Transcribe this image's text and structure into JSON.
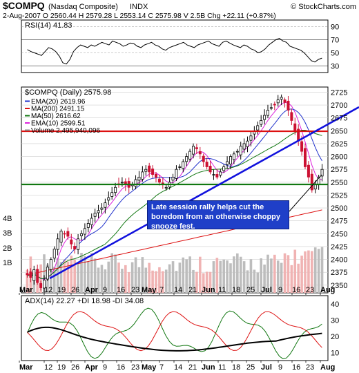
{
  "header": {
    "symbol": "$COMPQ",
    "name": "(Nasdaq Composite)",
    "exchange": "INDX",
    "source": "© StockCharts.com",
    "quote_line": "2-Aug-2007   O 2560.44  H 2579.28  L 2553.14  C 2575.98  V 2.5B  Chg +22.11 (+0.87%)"
  },
  "rsi_panel": {
    "label": "RSI(14) 41.83",
    "ticks": [
      "90",
      "70",
      "50",
      "30"
    ],
    "values": [
      55,
      52,
      50,
      48,
      46,
      52,
      58,
      56,
      52,
      45,
      35,
      33,
      40,
      52,
      58,
      62,
      60,
      58,
      62,
      60,
      63,
      66,
      64,
      62,
      68,
      66,
      64,
      60,
      62,
      65,
      64,
      60,
      58,
      62,
      64,
      66,
      62,
      60,
      56,
      54,
      58,
      60,
      62,
      64,
      66,
      62,
      60,
      58,
      62,
      64,
      66,
      68,
      64,
      62,
      60,
      66,
      68,
      65,
      62,
      60,
      58,
      62,
      60,
      56,
      54,
      50,
      52,
      56,
      62,
      66,
      70,
      72,
      68,
      66,
      60,
      58,
      56,
      54,
      50,
      44,
      38,
      36,
      40,
      42
    ]
  },
  "price_panel": {
    "title": "$COMPQ (Daily) 2575.98",
    "legend": [
      {
        "text": "EMA(20) 2619.96",
        "color": "#2233cc"
      },
      {
        "text": "MA(200) 2491.15",
        "color": "#dd1111"
      },
      {
        "text": "MA(50) 2616.62",
        "color": "#117711"
      },
      {
        "text": "EMA(10) 2599.51",
        "color": "#dd22dd"
      },
      {
        "text": "Volume 2,495,940,096",
        "color": "#888888"
      }
    ],
    "y_ticks": [
      "2725",
      "2700",
      "2675",
      "2650",
      "2625",
      "2600",
      "2575",
      "2550",
      "2525",
      "2500",
      "2475",
      "2450",
      "2425",
      "2400",
      "2375",
      "2350"
    ],
    "vol_ticks": [
      "4B",
      "3B",
      "2B",
      "1B"
    ],
    "annotation": "Late session rally helps cut the boredom from an otherwise choppy snooze fest."
  },
  "adx_panel": {
    "label": "ADX(14) 22.27  +DI 18.98  -DI 34.08",
    "ticks": [
      "40",
      "30",
      "20",
      "10"
    ]
  },
  "x_axis": {
    "labels": [
      "Mar",
      "12",
      "19",
      "26",
      "Apr",
      "9",
      "16",
      "23",
      "May",
      "7",
      "14",
      "21",
      "Jun",
      "11",
      "18",
      "25",
      "Jul",
      "9",
      "16",
      "23",
      "Aug"
    ],
    "bold": [
      "Mar",
      "Apr",
      "May",
      "Jun",
      "Jul",
      "Aug"
    ]
  },
  "chart_data": {
    "type": "candlestick",
    "title": "$COMPQ (Daily) 2575.98",
    "ylim": [
      2335,
      2735
    ],
    "x_range": [
      "2007-03-05",
      "2007-08-02"
    ],
    "resistance_levels": [
      2635,
      2523
    ],
    "trendline": {
      "from": [
        "2007-03-14",
        2345
      ],
      "to": [
        "2007-08-02",
        2690
      ]
    },
    "close_series": [
      2370,
      2365,
      2380,
      2355,
      2345,
      2360,
      2385,
      2400,
      2420,
      2440,
      2455,
      2450,
      2445,
      2430,
      2420,
      2440,
      2450,
      2460,
      2470,
      2480,
      2490,
      2495,
      2500,
      2510,
      2520,
      2530,
      2540,
      2545,
      2550,
      2545,
      2540,
      2545,
      2555,
      2560,
      2570,
      2575,
      2570,
      2565,
      2560,
      2550,
      2545,
      2540,
      2550,
      2560,
      2575,
      2580,
      2590,
      2600,
      2610,
      2620,
      2615,
      2605,
      2590,
      2580,
      2570,
      2565,
      2560,
      2570,
      2580,
      2590,
      2600,
      2605,
      2610,
      2620,
      2625,
      2630,
      2640,
      2650,
      2660,
      2670,
      2680,
      2690,
      2695,
      2700,
      2710,
      2715,
      2705,
      2690,
      2670,
      2650,
      2630,
      2610,
      2580,
      2560,
      2535,
      2545,
      2560,
      2575
    ],
    "indicators": [
      {
        "name": "EMA(20)",
        "value": 2619.96
      },
      {
        "name": "MA(200)",
        "value": 2491.15
      },
      {
        "name": "MA(50)",
        "value": 2616.62
      },
      {
        "name": "EMA(10)",
        "value": 2599.51
      }
    ],
    "volume_last": 2495940096,
    "rsi_last": 41.83,
    "adx": {
      "adx": 22.27,
      "plus_di": 18.98,
      "minus_di": 34.08
    },
    "colors": {
      "up": "#000000",
      "down": "#cc1133",
      "trendline": "#1111dd",
      "resistance": "#dd1111",
      "support": "#117711"
    }
  }
}
